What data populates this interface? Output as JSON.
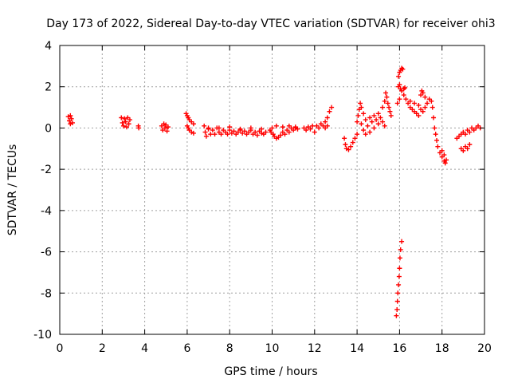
{
  "chart_data": {
    "type": "scatter",
    "title": "Day 173 of 2022, Sidereal Day-to-day VTEC variation (SDTVAR) for receiver ohi3",
    "xlabel": "GPS time / hours",
    "ylabel": "SDTVAR / TECUs",
    "xlim": [
      0,
      20
    ],
    "ylim": [
      -10,
      4
    ],
    "xticks": [
      0,
      2,
      4,
      6,
      8,
      10,
      12,
      14,
      16,
      18,
      20
    ],
    "yticks": [
      -10,
      -8,
      -6,
      -4,
      -2,
      0,
      2,
      4
    ],
    "grid": true,
    "marker": "+",
    "marker_color": "#ff0000",
    "series": [
      {
        "name": "SDTVAR",
        "points": [
          [
            0.4,
            0.55
          ],
          [
            0.45,
            0.35
          ],
          [
            0.5,
            0.2
          ],
          [
            0.55,
            0.45
          ],
          [
            0.6,
            0.25
          ],
          [
            0.5,
            0.6
          ],
          [
            2.9,
            0.5
          ],
          [
            2.95,
            0.25
          ],
          [
            3.0,
            0.1
          ],
          [
            3.05,
            0.45
          ],
          [
            3.1,
            0.3
          ],
          [
            3.15,
            0.05
          ],
          [
            3.2,
            0.5
          ],
          [
            3.25,
            0.2
          ],
          [
            3.3,
            0.4
          ],
          [
            3.7,
            0.1
          ],
          [
            3.72,
            0.0
          ],
          [
            4.8,
            0.1
          ],
          [
            4.85,
            -0.1
          ],
          [
            4.9,
            0.2
          ],
          [
            4.95,
            0.0
          ],
          [
            5.0,
            0.15
          ],
          [
            5.05,
            -0.15
          ],
          [
            5.1,
            0.05
          ],
          [
            5.95,
            0.7
          ],
          [
            6.0,
            0.6
          ],
          [
            6.05,
            0.5
          ],
          [
            6.1,
            0.4
          ],
          [
            6.2,
            0.3
          ],
          [
            6.3,
            0.2
          ],
          [
            6.0,
            0.1
          ],
          [
            6.05,
            0.0
          ],
          [
            6.1,
            -0.1
          ],
          [
            6.2,
            -0.2
          ],
          [
            6.3,
            -0.25
          ],
          [
            6.8,
            0.1
          ],
          [
            6.85,
            -0.2
          ],
          [
            6.9,
            -0.4
          ],
          [
            7.0,
            0.0
          ],
          [
            7.1,
            -0.3
          ],
          [
            7.2,
            -0.1
          ],
          [
            7.3,
            -0.3
          ],
          [
            7.4,
            0.0
          ],
          [
            7.5,
            -0.2
          ],
          [
            7.6,
            -0.3
          ],
          [
            7.7,
            -0.1
          ],
          [
            7.8,
            -0.2
          ],
          [
            7.9,
            -0.3
          ],
          [
            8.0,
            -0.1
          ],
          [
            8.1,
            -0.25
          ],
          [
            8.2,
            -0.15
          ],
          [
            8.3,
            -0.3
          ],
          [
            8.4,
            -0.2
          ],
          [
            8.5,
            -0.1
          ],
          [
            8.6,
            -0.25
          ],
          [
            8.7,
            -0.15
          ],
          [
            8.8,
            -0.3
          ],
          [
            8.9,
            -0.2
          ],
          [
            9.0,
            -0.1
          ],
          [
            9.1,
            -0.3
          ],
          [
            9.2,
            -0.2
          ],
          [
            9.3,
            -0.35
          ],
          [
            9.4,
            -0.15
          ],
          [
            9.5,
            -0.25
          ],
          [
            9.6,
            -0.3
          ],
          [
            9.7,
            -0.2
          ],
          [
            7.0,
            -0.05
          ],
          [
            7.5,
            0.0
          ],
          [
            8.0,
            0.05
          ],
          [
            8.5,
            -0.05
          ],
          [
            9.0,
            0.0
          ],
          [
            9.5,
            -0.05
          ],
          [
            9.9,
            -0.1
          ],
          [
            9.95,
            -0.2
          ],
          [
            10.0,
            0.0
          ],
          [
            10.05,
            -0.3
          ],
          [
            10.1,
            -0.4
          ],
          [
            10.2,
            -0.5
          ],
          [
            10.3,
            -0.45
          ],
          [
            10.4,
            -0.35
          ],
          [
            10.5,
            -0.2
          ],
          [
            10.6,
            -0.3
          ],
          [
            10.7,
            -0.1
          ],
          [
            10.8,
            -0.2
          ],
          [
            10.9,
            0.0
          ],
          [
            11.0,
            -0.1
          ],
          [
            11.1,
            0.0
          ],
          [
            11.2,
            -0.05
          ],
          [
            10.2,
            0.1
          ],
          [
            10.5,
            0.05
          ],
          [
            10.8,
            0.1
          ],
          [
            11.1,
            0.05
          ],
          [
            11.5,
            0.0
          ],
          [
            11.6,
            -0.1
          ],
          [
            11.7,
            0.05
          ],
          [
            11.8,
            -0.05
          ],
          [
            11.9,
            0.1
          ],
          [
            12.0,
            -0.2
          ],
          [
            12.1,
            0.1
          ],
          [
            12.2,
            0.0
          ],
          [
            12.3,
            0.2
          ],
          [
            12.4,
            0.1
          ],
          [
            12.5,
            0.3
          ],
          [
            12.6,
            0.5
          ],
          [
            12.7,
            0.8
          ],
          [
            12.8,
            1.0
          ],
          [
            12.5,
            0.0
          ],
          [
            12.6,
            0.1
          ],
          [
            13.4,
            -0.5
          ],
          [
            13.45,
            -0.8
          ],
          [
            13.5,
            -1.0
          ],
          [
            13.6,
            -1.05
          ],
          [
            13.7,
            -0.9
          ],
          [
            13.8,
            -0.7
          ],
          [
            13.9,
            -0.5
          ],
          [
            14.0,
            -0.3
          ],
          [
            14.0,
            0.3
          ],
          [
            14.05,
            0.6
          ],
          [
            14.1,
            0.9
          ],
          [
            14.15,
            1.2
          ],
          [
            14.2,
            1.0
          ],
          [
            14.3,
            0.7
          ],
          [
            14.4,
            0.4
          ],
          [
            14.2,
            0.2
          ],
          [
            14.3,
            -0.1
          ],
          [
            14.4,
            -0.3
          ],
          [
            14.5,
            0.1
          ],
          [
            14.6,
            -0.2
          ],
          [
            14.7,
            0.3
          ],
          [
            14.8,
            0.0
          ],
          [
            14.9,
            0.4
          ],
          [
            15.0,
            0.2
          ],
          [
            15.1,
            0.5
          ],
          [
            15.2,
            0.3
          ],
          [
            15.3,
            0.1
          ],
          [
            14.6,
            0.5
          ],
          [
            14.8,
            0.6
          ],
          [
            15.0,
            0.7
          ],
          [
            15.2,
            1.0
          ],
          [
            15.3,
            1.3
          ],
          [
            15.4,
            1.5
          ],
          [
            15.35,
            1.7
          ],
          [
            15.45,
            1.2
          ],
          [
            15.5,
            1.0
          ],
          [
            15.55,
            0.8
          ],
          [
            15.6,
            0.6
          ],
          [
            15.95,
            2.5
          ],
          [
            16.0,
            2.7
          ],
          [
            16.05,
            2.8
          ],
          [
            16.1,
            2.9
          ],
          [
            16.15,
            2.85
          ],
          [
            15.95,
            2.0
          ],
          [
            16.0,
            2.1
          ],
          [
            16.05,
            1.9
          ],
          [
            16.1,
            1.8
          ],
          [
            16.2,
            1.9
          ],
          [
            16.25,
            1.95
          ],
          [
            15.9,
            1.2
          ],
          [
            16.0,
            1.4
          ],
          [
            16.2,
            1.6
          ],
          [
            16.3,
            1.4
          ],
          [
            16.4,
            1.2
          ],
          [
            16.5,
            1.0
          ],
          [
            16.6,
            0.9
          ],
          [
            16.7,
            0.8
          ],
          [
            16.8,
            0.7
          ],
          [
            16.9,
            0.6
          ],
          [
            16.5,
            1.3
          ],
          [
            16.7,
            1.2
          ],
          [
            16.9,
            1.1
          ],
          [
            17.0,
            0.9
          ],
          [
            17.1,
            0.8
          ],
          [
            17.2,
            1.0
          ],
          [
            17.3,
            1.2
          ],
          [
            17.4,
            1.4
          ],
          [
            17.0,
            1.6
          ],
          [
            17.05,
            1.8
          ],
          [
            17.1,
            1.7
          ],
          [
            17.2,
            1.5
          ],
          [
            17.5,
            1.3
          ],
          [
            17.55,
            1.0
          ],
          [
            17.6,
            0.5
          ],
          [
            17.65,
            0.0
          ],
          [
            17.7,
            -0.3
          ],
          [
            17.75,
            -0.6
          ],
          [
            17.8,
            -0.9
          ],
          [
            17.9,
            -1.2
          ],
          [
            18.0,
            -1.4
          ],
          [
            18.1,
            -1.6
          ],
          [
            18.15,
            -1.7
          ],
          [
            18.2,
            -1.55
          ],
          [
            18.1,
            -1.3
          ],
          [
            18.0,
            -1.1
          ],
          [
            18.9,
            -1.0
          ],
          [
            19.0,
            -1.1
          ],
          [
            19.1,
            -0.9
          ],
          [
            19.2,
            -1.0
          ],
          [
            19.3,
            -0.8
          ],
          [
            18.7,
            -0.5
          ],
          [
            18.8,
            -0.4
          ],
          [
            18.9,
            -0.3
          ],
          [
            19.0,
            -0.2
          ],
          [
            19.1,
            -0.3
          ],
          [
            19.2,
            -0.1
          ],
          [
            19.3,
            -0.2
          ],
          [
            19.4,
            0.0
          ],
          [
            19.5,
            -0.1
          ],
          [
            19.6,
            0.0
          ],
          [
            19.7,
            0.1
          ],
          [
            19.8,
            0.0
          ],
          [
            16.1,
            -5.5
          ],
          [
            16.05,
            -5.9
          ],
          [
            16.02,
            -6.3
          ],
          [
            16.0,
            -6.8
          ],
          [
            15.98,
            -7.2
          ],
          [
            15.95,
            -7.6
          ],
          [
            15.92,
            -8.0
          ],
          [
            15.9,
            -8.4
          ],
          [
            15.88,
            -8.8
          ],
          [
            15.85,
            -9.1
          ]
        ]
      }
    ]
  }
}
